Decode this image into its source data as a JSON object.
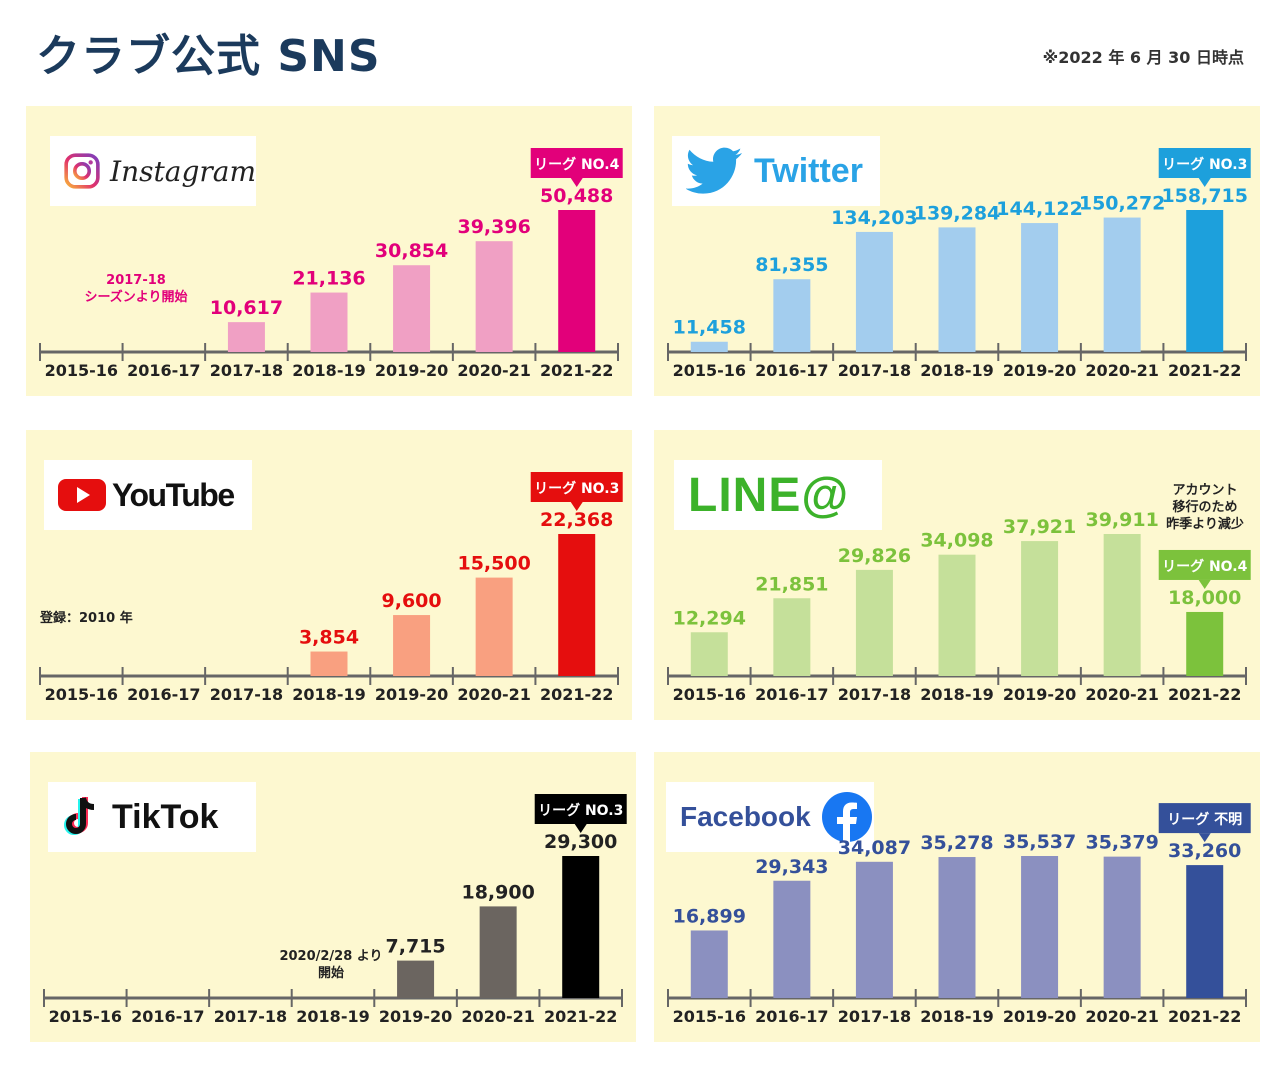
{
  "page": {
    "title": "クラブ公式 SNS",
    "as_of": "※2022 年 6 月 30 日時点"
  },
  "chart_data": [
    {
      "id": "instagram",
      "type": "bar",
      "platform": "Instagram",
      "categories": [
        "2015-16",
        "2016-17",
        "2017-18",
        "2018-19",
        "2019-20",
        "2020-21",
        "2021-22"
      ],
      "values": [
        null,
        null,
        10617,
        21136,
        30854,
        39396,
        50488
      ],
      "value_labels": [
        "",
        "",
        "10,617",
        "21,136",
        "30,854",
        "39,396",
        "50,488"
      ],
      "ymax": 50488,
      "bar_color": "#f0a0c4",
      "highlight_color": "#e2007a",
      "label_color": "#e2007a",
      "badge": "リーグ NO.4",
      "badge_color": "#e2007a",
      "note": "2017-18\nシーズンより開始",
      "note_color": "#e2007a"
    },
    {
      "id": "twitter",
      "type": "bar",
      "platform": "Twitter",
      "categories": [
        "2015-16",
        "2016-17",
        "2017-18",
        "2018-19",
        "2019-20",
        "2020-21",
        "2021-22"
      ],
      "values": [
        11458,
        81355,
        134203,
        139284,
        144122,
        150272,
        158715
      ],
      "value_labels": [
        "11,458",
        "81,355",
        "134,203",
        "139,284",
        "144,122",
        "150,272",
        "158,715"
      ],
      "ymax": 158715,
      "bar_color": "#a3cdee",
      "highlight_color": "#1da0dc",
      "label_color": "#1da0dc",
      "badge": "リーグ NO.3",
      "badge_color": "#1da0dc",
      "note": "",
      "note_color": "#1da0dc"
    },
    {
      "id": "youtube",
      "type": "bar",
      "platform": "YouTube",
      "categories": [
        "2015-16",
        "2016-17",
        "2017-18",
        "2018-19",
        "2019-20",
        "2020-21",
        "2021-22"
      ],
      "values": [
        null,
        null,
        null,
        3854,
        9600,
        15500,
        22368
      ],
      "value_labels": [
        "",
        "",
        "",
        "3,854",
        "9,600",
        "15,500",
        "22,368"
      ],
      "ymax": 22368,
      "bar_color": "#f9a080",
      "highlight_color": "#e50e0e",
      "label_color": "#e50e0e",
      "badge": "リーグ NO.3",
      "badge_color": "#e50e0e",
      "note": "登録：2010 年",
      "note_color": "#222222"
    },
    {
      "id": "line",
      "type": "bar",
      "platform": "LINE@",
      "categories": [
        "2015-16",
        "2016-17",
        "2017-18",
        "2018-19",
        "2019-20",
        "2020-21",
        "2021-22"
      ],
      "values": [
        12294,
        21851,
        29826,
        34098,
        37921,
        39911,
        18000
      ],
      "value_labels": [
        "12,294",
        "21,851",
        "29,826",
        "34,098",
        "37,921",
        "39,911",
        "18,000"
      ],
      "ymax": 39911,
      "bar_color": "#c5e09a",
      "highlight_color": "#7cc23c",
      "label_color": "#7cc23c",
      "badge": "リーグ NO.4",
      "badge_color": "#7cc23c",
      "note": "アカウント\n移行のため\n昨季より減少",
      "note_color": "#222222"
    },
    {
      "id": "tiktok",
      "type": "bar",
      "platform": "TikTok",
      "categories": [
        "2015-16",
        "2016-17",
        "2017-18",
        "2018-19",
        "2019-20",
        "2020-21",
        "2021-22"
      ],
      "values": [
        null,
        null,
        null,
        null,
        7715,
        18900,
        29300
      ],
      "value_labels": [
        "",
        "",
        "",
        "",
        "7,715",
        "18,900",
        "29,300"
      ],
      "ymax": 29300,
      "bar_color": "#6b6560",
      "highlight_color": "#000000",
      "label_color": "#222222",
      "badge": "リーグ NO.3",
      "badge_color": "#000000",
      "note": "2020/2/28 より\n開始",
      "note_color": "#222222"
    },
    {
      "id": "facebook",
      "type": "bar",
      "platform": "Facebook",
      "categories": [
        "2015-16",
        "2016-17",
        "2017-18",
        "2018-19",
        "2019-20",
        "2020-21",
        "2021-22"
      ],
      "values": [
        16899,
        29343,
        34087,
        35278,
        35537,
        35379,
        33260
      ],
      "value_labels": [
        "16,899",
        "29,343",
        "34,087",
        "35,278",
        "35,537",
        "35,379",
        "33,260"
      ],
      "ymax": 35537,
      "bar_color": "#8b90c0",
      "highlight_color": "#34509a",
      "label_color": "#34509a",
      "badge": "リーグ 不明",
      "badge_color": "#34509a",
      "note": "",
      "note_color": "#34509a"
    }
  ]
}
